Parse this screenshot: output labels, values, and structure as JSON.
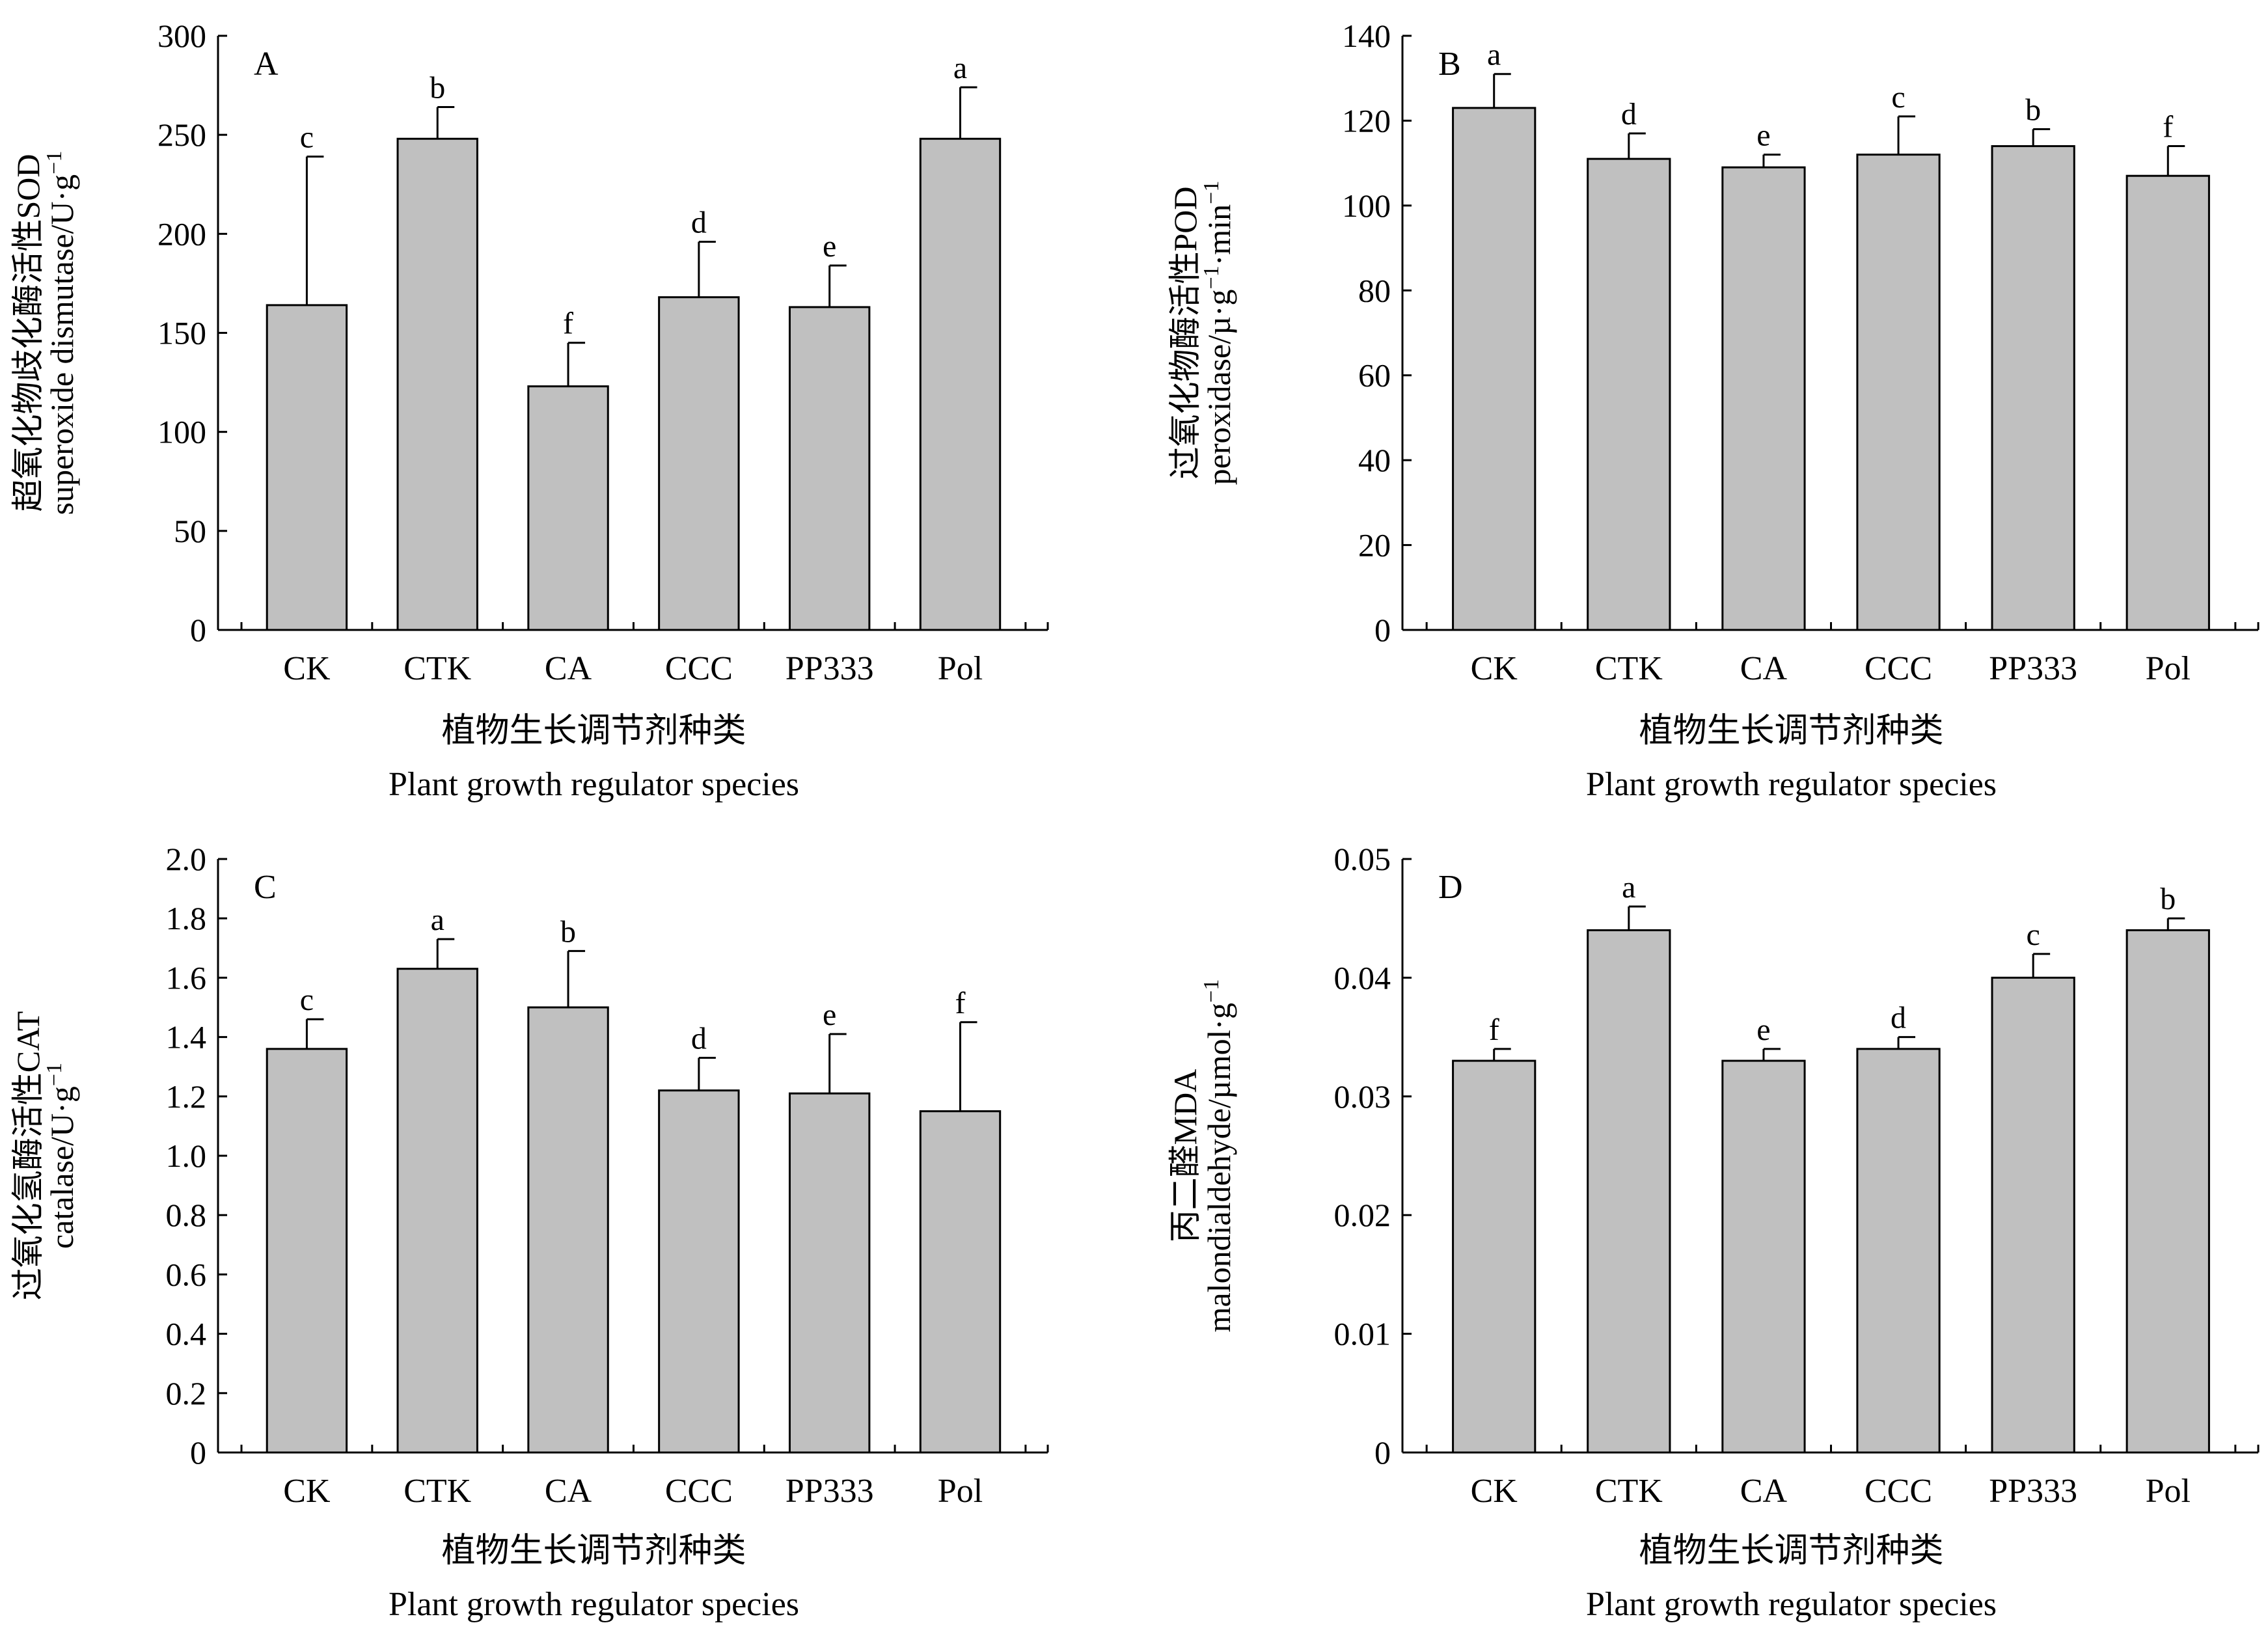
{
  "chart_data": [
    {
      "type": "bar",
      "panel_label": "A",
      "categories": [
        "CK",
        "CTK",
        "CA",
        "CCC",
        "PP333",
        "Pol"
      ],
      "values": [
        164,
        248,
        123,
        168,
        163,
        248
      ],
      "errors": [
        75,
        16,
        22,
        28,
        21,
        26
      ],
      "significance": [
        "c",
        "b",
        "f",
        "d",
        "e",
        "a"
      ],
      "ylim": [
        0,
        300
      ],
      "yticks": [
        "0",
        "50",
        "100",
        "150",
        "200",
        "250",
        "300"
      ],
      "ylabel_cn": "超氧化物歧化酶活性SOD",
      "ylabel_en": "superoxide dismutase/U·g",
      "ylabel_sup": "−1",
      "ylabel_tail": "",
      "xlabel_cn": "植物生长调节剂种类",
      "xlabel_en": "Plant growth regulator species"
    },
    {
      "type": "bar",
      "panel_label": "B",
      "categories": [
        "CK",
        "CTK",
        "CA",
        "CCC",
        "PP333",
        "Pol"
      ],
      "values": [
        123,
        111,
        109,
        112,
        114,
        107
      ],
      "errors": [
        8,
        6,
        3,
        9,
        4,
        7
      ],
      "significance": [
        "a",
        "d",
        "e",
        "c",
        "b",
        "f"
      ],
      "ylim": [
        0,
        140
      ],
      "yticks": [
        "0",
        "20",
        "40",
        "60",
        "80",
        "100",
        "120",
        "140"
      ],
      "ylabel_cn": "过氧化物酶活性POD",
      "ylabel_en": "peroxidase/µ·g",
      "ylabel_sup": "−1",
      "ylabel_tail": "·min",
      "ylabel_tail_sup": "−1",
      "xlabel_cn": "植物生长调节剂种类",
      "xlabel_en": "Plant growth regulator species"
    },
    {
      "type": "bar",
      "panel_label": "C",
      "categories": [
        "CK",
        "CTK",
        "CA",
        "CCC",
        "PP333",
        "Pol"
      ],
      "values": [
        1.36,
        1.63,
        1.5,
        1.22,
        1.21,
        1.15
      ],
      "errors": [
        0.1,
        0.1,
        0.19,
        0.11,
        0.2,
        0.3
      ],
      "significance": [
        "c",
        "a",
        "b",
        "d",
        "e",
        "f"
      ],
      "ylim": [
        0,
        2.0
      ],
      "yticks": [
        "0",
        "0.2",
        "0.4",
        "0.6",
        "0.8",
        "1.0",
        "1.2",
        "1.4",
        "1.6",
        "1.8",
        "2.0"
      ],
      "ylabel_cn": "过氧化氢酶活性CAT",
      "ylabel_en": "catalase/U·g",
      "ylabel_sup": "−1",
      "ylabel_tail": "",
      "xlabel_cn": "植物生长调节剂种类",
      "xlabel_en": "Plant growth regulator species"
    },
    {
      "type": "bar",
      "panel_label": "D",
      "categories": [
        "CK",
        "CTK",
        "CA",
        "CCC",
        "PP333",
        "Pol"
      ],
      "values": [
        0.033,
        0.044,
        0.033,
        0.034,
        0.04,
        0.044
      ],
      "errors": [
        0.001,
        0.002,
        0.001,
        0.001,
        0.002,
        0.001
      ],
      "significance": [
        "f",
        "a",
        "e",
        "d",
        "c",
        "b"
      ],
      "ylim": [
        0,
        0.05
      ],
      "yticks": [
        "0",
        "0.01",
        "0.02",
        "0.03",
        "0.04",
        "0.05"
      ],
      "ylabel_cn": "丙二醛MDA",
      "ylabel_en": "malondialdehyde/µmol·g",
      "ylabel_sup": "−1",
      "ylabel_tail": "",
      "xlabel_cn": "植物生长调节剂种类",
      "xlabel_en": "Plant growth regulator species"
    }
  ]
}
